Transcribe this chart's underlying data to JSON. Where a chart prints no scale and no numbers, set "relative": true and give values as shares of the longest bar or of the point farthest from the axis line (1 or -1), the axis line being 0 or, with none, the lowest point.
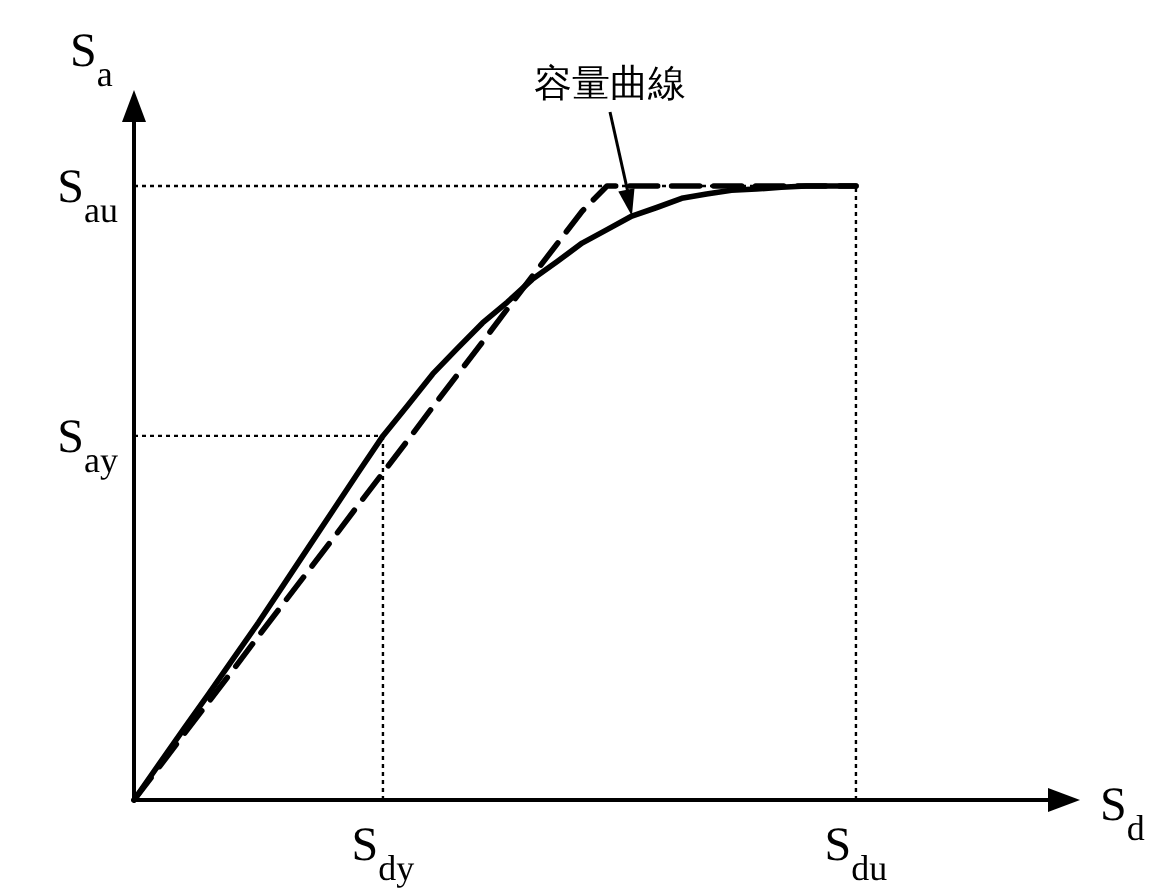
{
  "chart_data": {
    "type": "line",
    "relative": true,
    "xlabel": "S$_{d}$",
    "ylabel": "S$_{a}$",
    "categories": [
      null,
      null,
      null,
      null,
      null,
      null,
      null,
      null,
      null,
      null,
      "S$_{dy}$",
      null,
      null,
      null,
      null,
      null,
      null,
      null,
      null,
      null,
      null,
      null,
      null,
      null,
      null,
      null,
      null,
      null,
      null,
      "S$_{du}$",
      null,
      null,
      null,
      null,
      null,
      null,
      null,
      null,
      null
    ],
    "series": [
      {
        "color": "#000000",
        "line_style": "solid",
        "values": [
          0,
          0.058,
          0.116,
          0.173,
          0.231,
          0.289,
          0.35,
          0.411,
          0.472,
          0.533,
          0.593,
          0.643,
          0.694,
          0.736,
          0.777,
          0.811,
          0.848,
          0.877,
          0.907,
          0.929,
          0.951,
          0.965,
          0.98,
          0.987,
          0.993,
          0.995,
          0.998,
          1.0,
          1.0,
          1.0,
          null,
          null,
          null,
          null,
          null,
          null,
          null,
          null,
          null
        ]
      },
      {
        "color": "#000000",
        "line_style": "dashed",
        "values": [
          0,
          0.053,
          0.107,
          0.16,
          0.213,
          0.267,
          0.32,
          0.373,
          0.426,
          0.48,
          0.533,
          0.586,
          0.64,
          0.693,
          0.746,
          0.8,
          0.853,
          0.906,
          0.959,
          1.0,
          1.0,
          1.0,
          1.0,
          1.0,
          1.0,
          1.0,
          1.0,
          1.0,
          1.0,
          1.0,
          null,
          null,
          null,
          null,
          null,
          null,
          null,
          null,
          null
        ]
      }
    ],
    "ref_lines": [
      {
        "axis": "y",
        "value": 1.0,
        "label": "S$_{au}$",
        "line_style": "dotted"
      },
      {
        "axis": "y",
        "value": 0.593,
        "label": "S$_{ay}$",
        "line_style": "dotted"
      },
      {
        "axis": "x",
        "value": "S$_{dy}$",
        "line_style": "dotted"
      },
      {
        "axis": "x",
        "value": "S$_{du}$",
        "line_style": "dotted"
      }
    ],
    "annotations": [
      {
        "text": "容量曲線",
        "y": 0.951
      }
    ]
  }
}
